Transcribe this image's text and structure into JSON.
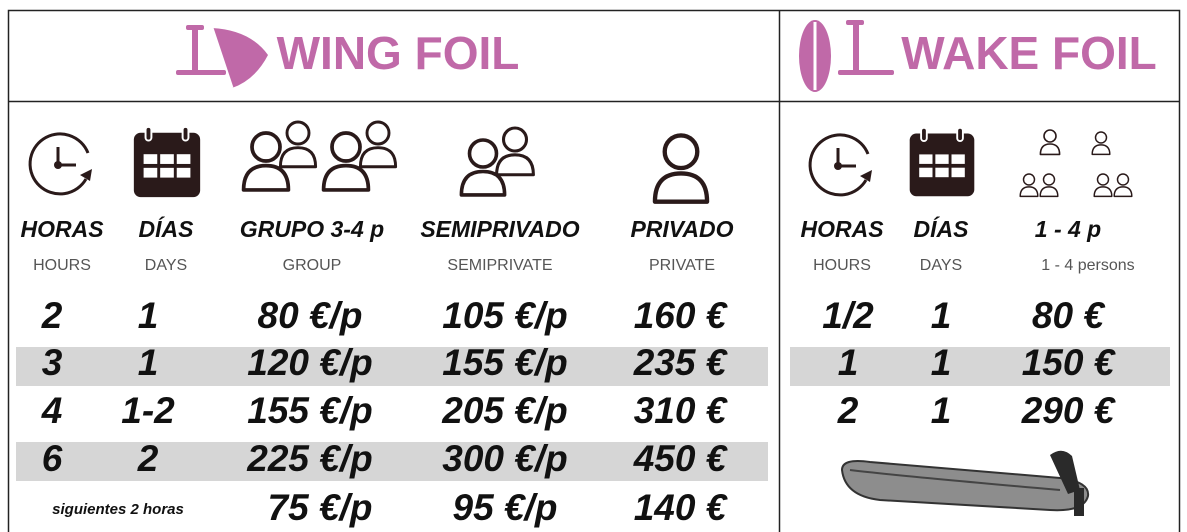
{
  "wing_foil": {
    "title": "WING FOIL",
    "columns": [
      {
        "label": "HORAS",
        "sublabel": "HOURS"
      },
      {
        "label": "DÍAS",
        "sublabel": "DAYS"
      },
      {
        "label": "GRUPO 3-4 p",
        "sublabel": "GROUP"
      },
      {
        "label": "SEMIPRIVADO",
        "sublabel": "SEMIPRIVATE"
      },
      {
        "label": "PRIVADO",
        "sublabel": "PRIVATE"
      }
    ],
    "rows": [
      [
        "2",
        "1",
        "80 €/p",
        "105 €/p",
        "160 €"
      ],
      [
        "3",
        "1",
        "120 €/p",
        "155 €/p",
        "235 €"
      ],
      [
        "4",
        "1-2",
        "155 €/p",
        "205 €/p",
        "310 €"
      ],
      [
        "6",
        "2",
        "225 €/p",
        "300 €/p",
        "450 €"
      ]
    ],
    "footer_row": {
      "label": "siguientes 2 horas",
      "values": [
        "75 €/p",
        "95 €/p",
        "140 €"
      ]
    }
  },
  "wake_foil": {
    "title": "WAKE FOIL",
    "columns": [
      {
        "label": "HORAS",
        "sublabel": "HOURS"
      },
      {
        "label": "DÍAS",
        "sublabel": "DAYS"
      },
      {
        "label": "1 - 4 p",
        "sublabel": "1 - 4 persons"
      }
    ],
    "rows": [
      [
        "1/2",
        "1",
        "80 €"
      ],
      [
        "1",
        "1",
        "150 €"
      ],
      [
        "2",
        "1",
        "290 €"
      ]
    ]
  }
}
